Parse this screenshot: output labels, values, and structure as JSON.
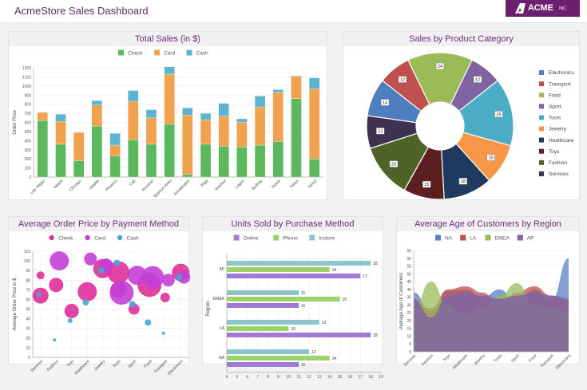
{
  "header": {
    "title": "AcmeStore Sales Dashboard",
    "logo_text": "ACME",
    "logo_suffix": "INC."
  },
  "colors": {
    "green": "#5cb85c",
    "orange": "#f0a24e",
    "teal": "#5bb5d0",
    "purple": "#6d2c7e"
  },
  "chart_data": [
    {
      "type": "bar",
      "stacked": true,
      "title": "Total Sales (in $)",
      "ylabel": "Order Price",
      "ylim": [
        0,
        1200
      ],
      "yticks": [
        0,
        100,
        200,
        300,
        400,
        500,
        600,
        700,
        800,
        900,
        1000,
        1100,
        1200
      ],
      "legend": "top",
      "categories": [
        "Las Vegas",
        "Miami",
        "Chicago",
        "Seattle",
        "Phoenix",
        "Cali",
        "Houston",
        "Buenos Aires",
        "Amsterdam",
        "Riga",
        "Istanbul",
        "Lagos",
        "Sydney",
        "Dubai",
        "Tokyo",
        "Seoul"
      ],
      "series": [
        {
          "name": "Check",
          "color": "#5cb85c",
          "values": [
            620,
            360,
            180,
            560,
            230,
            410,
            360,
            580,
            30,
            360,
            340,
            330,
            350,
            390,
            860,
            200
          ]
        },
        {
          "name": "Card",
          "color": "#f0a24e",
          "values": [
            90,
            250,
            310,
            230,
            120,
            420,
            290,
            550,
            650,
            270,
            330,
            270,
            420,
            540,
            250,
            770
          ]
        },
        {
          "name": "Cash",
          "color": "#5bb5d0",
          "values": [
            0,
            80,
            0,
            50,
            130,
            120,
            90,
            80,
            80,
            70,
            140,
            40,
            120,
            30,
            0,
            120
          ]
        }
      ]
    },
    {
      "type": "pie",
      "donut": true,
      "title": "Sales by Product Category",
      "legend": "right",
      "categories": [
        "Electronics",
        "Transport",
        "Food",
        "Sport",
        "Tools",
        "Jewelry",
        "Healthcare",
        "Toys",
        "Fashion",
        "Services"
      ],
      "colors": [
        "#4f7ec0",
        "#c0504d",
        "#9bbb59",
        "#8064a2",
        "#4bacc6",
        "#f79646",
        "#1f3a5f",
        "#5c1f1f",
        "#4f6228",
        "#3f3151"
      ],
      "values": [
        14,
        12,
        24,
        12,
        25,
        15,
        18,
        15,
        20,
        12
      ]
    },
    {
      "type": "scatter",
      "bubble": true,
      "title": "Average Order Price by Payment Method",
      "ylabel": "Average Order Price in $",
      "ylim": [
        0,
        110
      ],
      "yticks": [
        0,
        10,
        20,
        30,
        40,
        50,
        60,
        70,
        80,
        90,
        100,
        110
      ],
      "legend": "top",
      "categories": [
        "Services",
        "Fashion",
        "Toys",
        "Healthcare",
        "Jewelry",
        "Tools",
        "Sport",
        "Food",
        "Transport",
        "Electronics"
      ],
      "series": [
        {
          "name": "Check",
          "color": "#e0309a",
          "points": [
            [
              0,
              85,
              5
            ],
            [
              0,
              64,
              10
            ],
            [
              1,
              75,
              9
            ],
            [
              2,
              48,
              9
            ],
            [
              3,
              68,
              12
            ],
            [
              4,
              92,
              12
            ],
            [
              5,
              88,
              14
            ],
            [
              5,
              70,
              10
            ],
            [
              6,
              50,
              7
            ],
            [
              7,
              75,
              15
            ],
            [
              8,
              62,
              6
            ],
            [
              9,
              88,
              11
            ]
          ]
        },
        {
          "name": "Card",
          "color": "#c23fd6",
          "points": [
            [
              1,
              100,
              12
            ],
            [
              3,
              102,
              8
            ],
            [
              4,
              95,
              9
            ],
            [
              5,
              67,
              15
            ],
            [
              6,
              85,
              12
            ],
            [
              7,
              83,
              14
            ],
            [
              8,
              80,
              8
            ],
            [
              9,
              83,
              8
            ]
          ]
        },
        {
          "name": "Cash",
          "color": "#4aa3d8",
          "points": [
            [
              0,
              65,
              3
            ],
            [
              1,
              18,
              2
            ],
            [
              2,
              38,
              3
            ],
            [
              3,
              57,
              4
            ],
            [
              4,
              90,
              4
            ],
            [
              5,
              98,
              4
            ],
            [
              6,
              55,
              4
            ],
            [
              7,
              36,
              4
            ],
            [
              8,
              25,
              2
            ],
            [
              9,
              83,
              4
            ]
          ]
        }
      ]
    },
    {
      "type": "bar",
      "orientation": "horizontal",
      "title": "Units Sold by Purchase Method",
      "ylabel": "Region",
      "xlim": [
        4,
        19
      ],
      "xticks": [
        4,
        5,
        6,
        7,
        8,
        9,
        10,
        11,
        12,
        13,
        14,
        15,
        16,
        17,
        18,
        19
      ],
      "legend": "top",
      "categories": [
        "AP",
        "EMEA",
        "LA",
        "NA"
      ],
      "series": [
        {
          "name": "Online",
          "color": "#a07ad6",
          "values": [
            17,
            11,
            18,
            11
          ]
        },
        {
          "name": "Phone",
          "color": "#9bd36a",
          "values": [
            14,
            15,
            10,
            14
          ]
        },
        {
          "name": "Instore",
          "color": "#8cc5c9",
          "values": [
            18,
            11,
            13,
            12
          ]
        }
      ]
    },
    {
      "type": "area",
      "title": "Average Age of Customers by Region",
      "ylabel": "Average Age of Customers",
      "ylim": [
        0,
        65
      ],
      "yticks": [
        0,
        5,
        10,
        15,
        20,
        25,
        30,
        35,
        40,
        45,
        50,
        55,
        60,
        65
      ],
      "legend": "top",
      "categories": [
        "Services",
        "Fashion",
        "Toys",
        "Healthcare",
        "Jewelry",
        "Tools",
        "Sport",
        "Food",
        "Transport",
        "Electronics"
      ],
      "series": [
        {
          "name": "NA",
          "color": "#5b7fc4",
          "values": [
            38,
            26,
            39,
            40,
            35,
            40,
            30,
            40,
            33,
            60
          ]
        },
        {
          "name": "LA",
          "color": "#c0504d",
          "values": [
            30,
            28,
            40,
            42,
            38,
            30,
            38,
            42,
            36,
            32
          ]
        },
        {
          "name": "EMEA",
          "color": "#9bbb59",
          "values": [
            28,
            45,
            30,
            24,
            28,
            36,
            44,
            30,
            28,
            26
          ]
        },
        {
          "name": "AP",
          "color": "#8064a2",
          "values": [
            34,
            22,
            36,
            38,
            36,
            34,
            36,
            38,
            36,
            34
          ]
        }
      ]
    }
  ]
}
